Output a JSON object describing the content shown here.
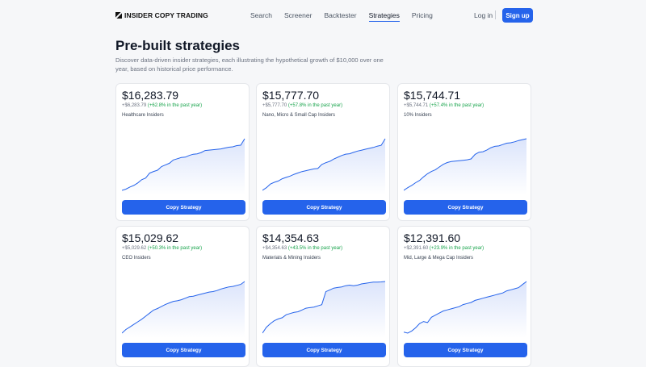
{
  "nav": {
    "logo_text": "INSIDER COPY TRADING",
    "links": [
      "Search",
      "Screener",
      "Backtester",
      "Strategies",
      "Pricing"
    ],
    "active_link": "Strategies",
    "login": "Log in",
    "signup": "Sign up"
  },
  "page": {
    "title": "Pre-built strategies",
    "description": "Discover data-driven insider strategies, each illustrating the hypothetical growth of $10,000 over one year, based on historical price performance."
  },
  "colors": {
    "accent": "#2563eb",
    "gain": "#16a34a",
    "chart_fill": "#dbe4fb"
  },
  "cards": [
    {
      "value": "$16,283.79",
      "change": "+$6,283.79",
      "pct": "(+62.8% in the past year)",
      "name": "Healthcare Insiders",
      "button": "Copy Strategy",
      "series": [
        10000,
        10150,
        10400,
        10600,
        10900,
        11300,
        11500,
        12100,
        12300,
        12450,
        12900,
        13100,
        13300,
        13700,
        13850,
        14000,
        14050,
        14250,
        14400,
        14450,
        14600,
        14850,
        14900,
        14950,
        15000,
        15050,
        15150,
        15250,
        15300,
        15450,
        15500,
        16283.79
      ]
    },
    {
      "value": "$15,777.70",
      "change": "+$5,777.70",
      "pct": "(+57.8% in the past year)",
      "name": "Nano, Micro & Small Cap Insiders",
      "button": "Copy Strategy",
      "series": [
        10000,
        10300,
        10700,
        10900,
        11050,
        11300,
        11450,
        11600,
        11800,
        11950,
        12100,
        12200,
        12300,
        12400,
        12450,
        12900,
        13100,
        13250,
        13500,
        13700,
        13900,
        14050,
        14100,
        14250,
        14400,
        14500,
        14600,
        14700,
        14800,
        14950,
        15050,
        15777.7
      ]
    },
    {
      "value": "$15,744.71",
      "change": "+$5,744.71",
      "pct": "(+57.4% in the past year)",
      "name": "10% Insiders",
      "button": "Copy Strategy",
      "series": [
        10000,
        10300,
        10550,
        10850,
        11100,
        11500,
        11850,
        12100,
        12300,
        12600,
        12900,
        13100,
        13200,
        13250,
        13300,
        13350,
        13400,
        13500,
        14000,
        14250,
        14300,
        14500,
        14750,
        14900,
        14950,
        15100,
        15250,
        15300,
        15400,
        15550,
        15650,
        15744.71
      ]
    },
    {
      "value": "$15,029.62",
      "change": "+$5,029.62",
      "pct": "(+50.3% in the past year)",
      "name": "CEO Insiders",
      "button": "Copy Strategy",
      "series": [
        10000,
        10350,
        10600,
        10850,
        11100,
        11350,
        11650,
        11950,
        12250,
        12400,
        12600,
        12800,
        12950,
        13100,
        13150,
        13250,
        13400,
        13550,
        13600,
        13700,
        13800,
        13900,
        14000,
        14050,
        14150,
        14300,
        14400,
        14500,
        14550,
        14650,
        14750,
        15029.62
      ]
    },
    {
      "value": "$14,354.63",
      "change": "+$4,354.63",
      "pct": "(+43.5% in the past year)",
      "name": "Materials & Mining Insiders",
      "button": "Copy Strategy",
      "series": [
        10000,
        10500,
        10800,
        11050,
        11200,
        11300,
        11550,
        11650,
        11750,
        11800,
        11950,
        12100,
        12150,
        12200,
        12300,
        12400,
        13500,
        13650,
        13800,
        13850,
        13900,
        14000,
        14050,
        14000,
        14050,
        14150,
        14200,
        14250,
        14300,
        14300,
        14320,
        14354.63
      ]
    },
    {
      "value": "$12,391.60",
      "change": "+$2,391.60",
      "pct": "(+23.9% in the past year)",
      "name": "Mid, Large & Mega Cap Insiders",
      "button": "Copy Strategy",
      "series": [
        10000,
        9950,
        10050,
        10200,
        10400,
        10500,
        10450,
        10700,
        10800,
        10900,
        11000,
        11050,
        11100,
        11150,
        11200,
        11300,
        11350,
        11400,
        11500,
        11550,
        11600,
        11650,
        11700,
        11750,
        11800,
        11850,
        11950,
        12000,
        12050,
        12100,
        12250,
        12391.6
      ]
    }
  ]
}
